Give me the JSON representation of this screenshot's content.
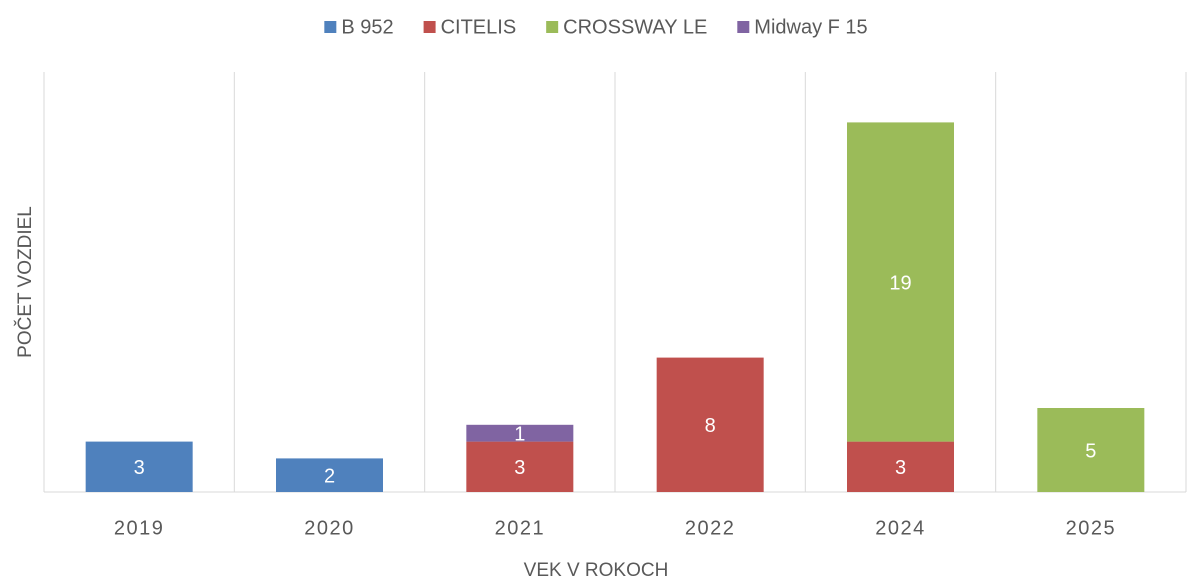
{
  "chart_data": {
    "type": "stacked_bar",
    "categories": [
      "2019",
      "2020",
      "2021",
      "2022",
      "2024",
      "2025"
    ],
    "series": [
      {
        "name": "B 952",
        "color": "#4f81bd",
        "values": [
          3,
          2,
          null,
          null,
          null,
          null
        ]
      },
      {
        "name": "CITELIS",
        "color": "#c0504d",
        "values": [
          null,
          null,
          3,
          8,
          3,
          null
        ]
      },
      {
        "name": "CROSSWAY LE",
        "color": "#9bbb59",
        "values": [
          null,
          null,
          null,
          null,
          19,
          5
        ]
      },
      {
        "name": "Midway F 15",
        "color": "#8064a2",
        "values": [
          null,
          null,
          1,
          null,
          null,
          null
        ]
      }
    ],
    "xlabel": "VEK V ROKOCH",
    "ylabel": "POČET VOZDIEL",
    "ylim": [
      0,
      25
    ],
    "legend": "top"
  }
}
